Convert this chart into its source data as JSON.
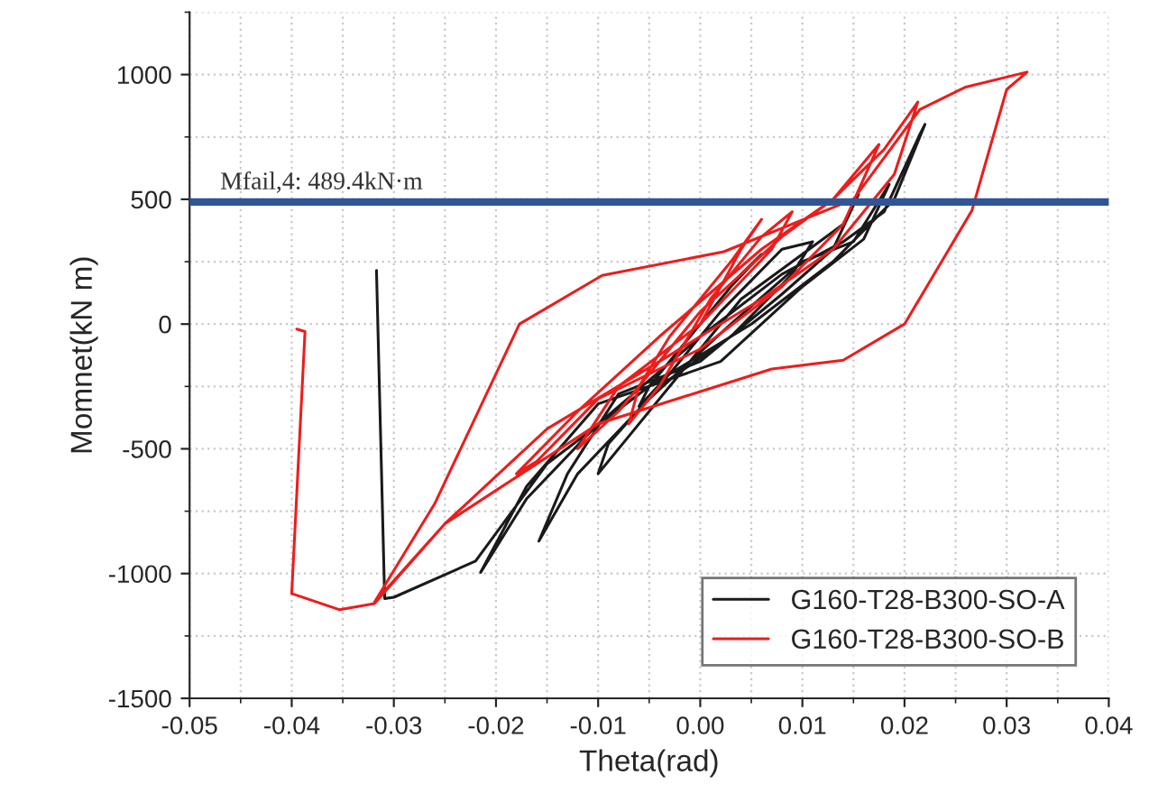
{
  "chart_data": {
    "type": "line",
    "xlabel": "Theta(rad)",
    "ylabel": "Momnet(kN m)",
    "xlim": [
      -0.05,
      0.04
    ],
    "xticks": [
      {
        "value": -0.05,
        "label": "-0.05"
      },
      {
        "value": -0.04,
        "label": "-0.04"
      },
      {
        "value": -0.03,
        "label": "-0.03"
      },
      {
        "value": -0.02,
        "label": "-0.02"
      },
      {
        "value": -0.01,
        "label": "-0.01"
      },
      {
        "value": 0,
        "label": "0.00"
      },
      {
        "value": 0.01,
        "label": "0.01"
      },
      {
        "value": 0.02,
        "label": "0.02"
      },
      {
        "value": 0.03,
        "label": "0.03"
      },
      {
        "value": 0.04,
        "label": "0.04"
      }
    ],
    "ylim": [
      -1500,
      1250
    ],
    "yticks": [
      -1500,
      -1000,
      -500,
      0,
      500,
      1000
    ],
    "grid": true,
    "legend": "bottom right",
    "marker": "none",
    "line_style": "solid",
    "ref_lines": [
      {
        "axis": "y",
        "value": 489.4,
        "label": "Mfail,4: 489.4kN·m",
        "color": "#2f5597"
      }
    ],
    "series": [
      {
        "name": "G160-T28-B300-SO-A",
        "color": "#1a1a1a",
        "x": [
          0,
          0.004,
          0.006,
          0.003,
          -0.002,
          -0.005,
          -0.006,
          -0.003,
          0.002,
          0.008,
          0.011,
          0.009,
          0.003,
          -0.004,
          -0.009,
          -0.01,
          -0.007,
          -0.002,
          0.004,
          0.01,
          0.014,
          0.0155,
          0.013,
          0.008,
          0.0,
          -0.008,
          -0.013,
          -0.0158,
          -0.012,
          -0.005,
          0.003,
          0.01,
          0.015,
          0.0185,
          0.016,
          0.01,
          0.002,
          -0.01,
          -0.017,
          -0.0215,
          -0.017,
          -0.01,
          0.0,
          0.008,
          0.014,
          0.018,
          0.0215,
          0.022,
          0.019,
          0.013,
          0.005,
          -0.005,
          -0.015,
          -0.022,
          -0.03,
          -0.0309,
          -0.0317
        ],
        "values": [
          0,
          200,
          280,
          150,
          -100,
          -250,
          -330,
          -200,
          50,
          300,
          330,
          200,
          -50,
          -250,
          -480,
          -600,
          -450,
          -200,
          100,
          280,
          400,
          520,
          300,
          120,
          -150,
          -280,
          -600,
          -870,
          -600,
          -300,
          0,
          250,
          330,
          560,
          340,
          150,
          -150,
          -320,
          -650,
          -995,
          -700,
          -400,
          -50,
          200,
          330,
          450,
          760,
          800,
          500,
          250,
          0,
          -250,
          -560,
          -950,
          -1095,
          -1100,
          215
        ]
      },
      {
        "name": "G160-T28-B300-SO-B",
        "color": "#ee1c1c",
        "x": [
          0,
          0.004,
          0.006,
          0.003,
          -0.003,
          -0.006,
          -0.007,
          -0.004,
          0.001,
          0.006,
          0.009,
          0.007,
          0.0,
          -0.008,
          -0.012,
          -0.008,
          0.0,
          0.008,
          0.013,
          0.0175,
          0.014,
          0.008,
          0.0,
          -0.01,
          -0.016,
          -0.018,
          -0.012,
          -0.004,
          0.006,
          0.013,
          0.018,
          0.0213,
          0.019,
          0.013,
          0.006,
          -0.004,
          -0.015,
          -0.025,
          -0.0319,
          -0.026,
          -0.0177,
          -0.0096,
          0.0023,
          0.015,
          0.0215,
          0.026,
          0.032,
          0.03,
          0.0266,
          0.02,
          0.014,
          0.007,
          -0.01,
          -0.025,
          -0.0319,
          -0.0353,
          -0.04,
          -0.0387,
          -0.0395
        ],
        "values": [
          0,
          300,
          420,
          250,
          -50,
          -250,
          -400,
          -250,
          100,
          350,
          450,
          300,
          0,
          -250,
          -500,
          -350,
          50,
          350,
          500,
          720,
          400,
          150,
          -100,
          -300,
          -550,
          -600,
          -350,
          -50,
          300,
          500,
          700,
          890,
          600,
          300,
          100,
          -150,
          -420,
          -800,
          -1115,
          -720,
          0,
          195,
          290,
          500,
          860,
          950,
          1010,
          940,
          455,
          0,
          -145,
          -180,
          -400,
          -800,
          -1120,
          -1145,
          -1080,
          -30,
          -20
        ]
      }
    ]
  }
}
